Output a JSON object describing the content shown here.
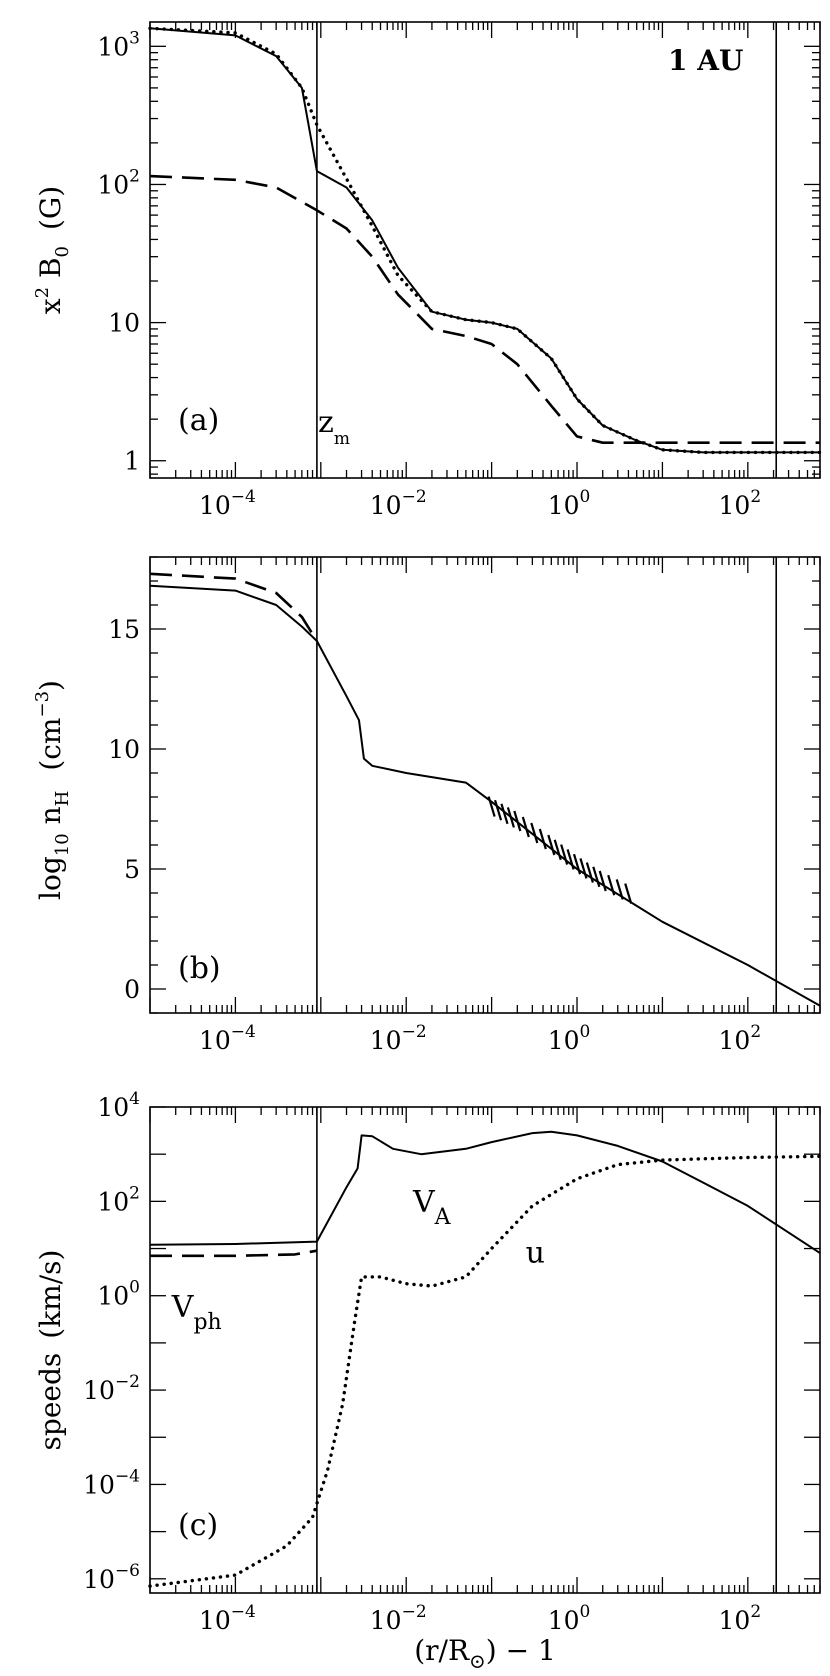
{
  "chart_data": [
    {
      "type": "line",
      "panel_label": "(a)",
      "ylabel": {
        "main": "x",
        "sup": "2",
        "mid": " B",
        "sub": "0",
        "unit": "(G)"
      },
      "xscale": "log",
      "yscale": "log",
      "xlim": [
        1e-05,
        700
      ],
      "ylim": [
        0.75,
        1500
      ],
      "x_ticks": [
        {
          "v": 0.0001,
          "base": "10",
          "exp": "−4"
        },
        {
          "v": 0.01,
          "base": "10",
          "exp": "−2"
        },
        {
          "v": 1,
          "base": "10",
          "exp": "0"
        },
        {
          "v": 100,
          "base": "10",
          "exp": "2"
        }
      ],
      "y_ticks": [
        {
          "v": 1,
          "base": "1",
          "exp": ""
        },
        {
          "v": 10,
          "base": "10",
          "exp": ""
        },
        {
          "v": 100,
          "base": "10",
          "exp": "2"
        },
        {
          "v": 1000,
          "base": "10",
          "exp": "3"
        }
      ],
      "vlines": [
        {
          "x": 0.0009,
          "label_main": "z",
          "label_sub": "m"
        },
        {
          "x": 215,
          "label_main": "1  AU",
          "label_sub": ""
        }
      ],
      "series": [
        {
          "style": "solid",
          "points": [
            [
              1e-05,
              1350
            ],
            [
              0.0001,
              1200
            ],
            [
              0.0003,
              850
            ],
            [
              0.0006,
              500
            ],
            [
              0.0009,
              125
            ],
            [
              0.002,
              95
            ],
            [
              0.004,
              55
            ],
            [
              0.008,
              25
            ],
            [
              0.02,
              12
            ],
            [
              0.05,
              10.5
            ],
            [
              0.1,
              10
            ],
            [
              0.2,
              9
            ],
            [
              0.5,
              5.5
            ],
            [
              1,
              2.8
            ],
            [
              2,
              1.8
            ],
            [
              5,
              1.4
            ],
            [
              10,
              1.2
            ],
            [
              30,
              1.15
            ],
            [
              100,
              1.15
            ],
            [
              700,
              1.15
            ]
          ]
        },
        {
          "style": "dotted",
          "points": [
            [
              1e-05,
              1350
            ],
            [
              0.0001,
              1250
            ],
            [
              0.0003,
              880
            ],
            [
              0.0006,
              500
            ],
            [
              0.0009,
              270
            ],
            [
              0.002,
              110
            ],
            [
              0.004,
              50
            ],
            [
              0.008,
              22
            ],
            [
              0.02,
              12
            ],
            [
              0.05,
              10.5
            ],
            [
              0.1,
              10
            ],
            [
              0.2,
              9
            ],
            [
              0.5,
              5.5
            ],
            [
              1,
              2.8
            ],
            [
              2,
              1.8
            ],
            [
              5,
              1.4
            ],
            [
              10,
              1.2
            ],
            [
              30,
              1.15
            ],
            [
              100,
              1.15
            ],
            [
              700,
              1.15
            ]
          ]
        },
        {
          "style": "dashed",
          "points": [
            [
              1e-05,
              115
            ],
            [
              0.0001,
              108
            ],
            [
              0.0003,
              95
            ],
            [
              0.0009,
              65
            ],
            [
              0.002,
              48
            ],
            [
              0.004,
              30
            ],
            [
              0.008,
              16
            ],
            [
              0.02,
              9
            ],
            [
              0.05,
              8
            ],
            [
              0.1,
              7
            ],
            [
              0.2,
              5
            ],
            [
              0.5,
              2.5
            ],
            [
              1,
              1.5
            ],
            [
              2,
              1.35
            ],
            [
              5,
              1.35
            ],
            [
              30,
              1.35
            ],
            [
              700,
              1.35
            ]
          ]
        }
      ]
    },
    {
      "type": "line",
      "panel_label": "(b)",
      "ylabel": {
        "main": "log",
        "sub": "10",
        "mid": " n",
        "sub2": "H",
        "unit": "(cm",
        "unit_sup": "−3",
        "unit_end": ")"
      },
      "xscale": "log",
      "yscale": "linear",
      "xlim": [
        1e-05,
        700
      ],
      "ylim": [
        -1,
        18
      ],
      "x_ticks": [
        {
          "v": 0.0001,
          "base": "10",
          "exp": "−4"
        },
        {
          "v": 0.01,
          "base": "10",
          "exp": "−2"
        },
        {
          "v": 1,
          "base": "10",
          "exp": "0"
        },
        {
          "v": 100,
          "base": "10",
          "exp": "2"
        }
      ],
      "y_ticks": [
        {
          "v": 0,
          "base": "0",
          "exp": ""
        },
        {
          "v": 5,
          "base": "5",
          "exp": ""
        },
        {
          "v": 10,
          "base": "10",
          "exp": ""
        },
        {
          "v": 15,
          "base": "15",
          "exp": ""
        }
      ],
      "vlines": [
        {
          "x": 0.0009
        },
        {
          "x": 215
        }
      ],
      "series": [
        {
          "style": "solid",
          "points": [
            [
              1e-05,
              16.8
            ],
            [
              0.0001,
              16.6
            ],
            [
              0.0003,
              16.0
            ],
            [
              0.0006,
              15.1
            ],
            [
              0.0009,
              14.5
            ],
            [
              0.002,
              12.2
            ],
            [
              0.0028,
              11.2
            ],
            [
              0.0032,
              9.6
            ],
            [
              0.004,
              9.3
            ],
            [
              0.01,
              9.0
            ],
            [
              0.05,
              8.6
            ],
            [
              0.1,
              7.8
            ],
            [
              1,
              5.0
            ],
            [
              10,
              2.8
            ],
            [
              100,
              1.0
            ],
            [
              700,
              -0.7
            ]
          ]
        },
        {
          "style": "dashed",
          "points": [
            [
              1e-05,
              17.3
            ],
            [
              0.0001,
              17.1
            ],
            [
              0.0003,
              16.5
            ],
            [
              0.0006,
              15.5
            ],
            [
              0.0009,
              14.5
            ]
          ]
        },
        {
          "style": "hatch",
          "points": [
            [
              0.1,
              7.6
            ],
            [
              0.2,
              7.0
            ],
            [
              0.5,
              6.0
            ],
            [
              1,
              5.2
            ],
            [
              2,
              4.5
            ],
            [
              5,
              3.8
            ]
          ]
        }
      ]
    },
    {
      "type": "line",
      "panel_label": "(c)",
      "ylabel": {
        "main": "speeds",
        "unit": "(km/s)"
      },
      "xlabel": {
        "main": "(r/R",
        "sub": "⊙",
        "end": ") − 1"
      },
      "xscale": "log",
      "yscale": "log",
      "xlim": [
        1e-05,
        700
      ],
      "ylim": [
        5e-07,
        10000
      ],
      "x_ticks": [
        {
          "v": 0.0001,
          "base": "10",
          "exp": "−4"
        },
        {
          "v": 0.01,
          "base": "10",
          "exp": "−2"
        },
        {
          "v": 1,
          "base": "10",
          "exp": "0"
        },
        {
          "v": 100,
          "base": "10",
          "exp": "2"
        }
      ],
      "y_ticks": [
        {
          "v": 1e-06,
          "base": "10",
          "exp": "−6"
        },
        {
          "v": 0.0001,
          "base": "10",
          "exp": "−4"
        },
        {
          "v": 0.01,
          "base": "10",
          "exp": "−2"
        },
        {
          "v": 1,
          "base": "10",
          "exp": "0"
        },
        {
          "v": 100,
          "base": "10",
          "exp": "2"
        },
        {
          "v": 10000,
          "base": "10",
          "exp": "4"
        }
      ],
      "vlines": [
        {
          "x": 0.0009
        },
        {
          "x": 215
        }
      ],
      "annotations": [
        {
          "main": "V",
          "sub": "A",
          "x": 0.012,
          "y": 60
        },
        {
          "main": "u",
          "x": 0.25,
          "y": 5
        },
        {
          "main": "V",
          "sub": "ph",
          "x": 1.8e-05,
          "y": 0.35
        }
      ],
      "series": [
        {
          "name": "V",
          "style": "solid",
          "points": [
            [
              1e-05,
              12
            ],
            [
              0.0001,
              12.5
            ],
            [
              0.0009,
              14
            ],
            [
              0.002,
              200
            ],
            [
              0.0027,
              500
            ],
            [
              0.003,
              2500
            ],
            [
              0.004,
              2400
            ],
            [
              0.007,
              1300
            ],
            [
              0.015,
              1000
            ],
            [
              0.05,
              1300
            ],
            [
              0.1,
              1800
            ],
            [
              0.3,
              2800
            ],
            [
              0.5,
              3000
            ],
            [
              1,
              2500
            ],
            [
              3,
              1500
            ],
            [
              10,
              700
            ],
            [
              30,
              250
            ],
            [
              100,
              80
            ],
            [
              700,
              8
            ]
          ]
        },
        {
          "name": "V",
          "style": "dashed",
          "points": [
            [
              1e-05,
              7
            ],
            [
              0.0001,
              7
            ],
            [
              0.0005,
              7.5
            ],
            [
              0.0009,
              9
            ]
          ]
        },
        {
          "name": "u",
          "style": "dotted",
          "points": [
            [
              1e-05,
              7e-07
            ],
            [
              0.0001,
              1.2e-06
            ],
            [
              0.0004,
              5e-06
            ],
            [
              0.0008,
              2e-05
            ],
            [
              0.0012,
              0.0002
            ],
            [
              0.0018,
              0.005
            ],
            [
              0.0025,
              0.3
            ],
            [
              0.003,
              2.5
            ],
            [
              0.005,
              2.5
            ],
            [
              0.01,
              1.8
            ],
            [
              0.02,
              1.6
            ],
            [
              0.05,
              2.5
            ],
            [
              0.1,
              10
            ],
            [
              0.3,
              80
            ],
            [
              1,
              300
            ],
            [
              3,
              600
            ],
            [
              10,
              750
            ],
            [
              30,
              800
            ],
            [
              100,
              850
            ],
            [
              700,
              900
            ]
          ]
        }
      ]
    }
  ]
}
